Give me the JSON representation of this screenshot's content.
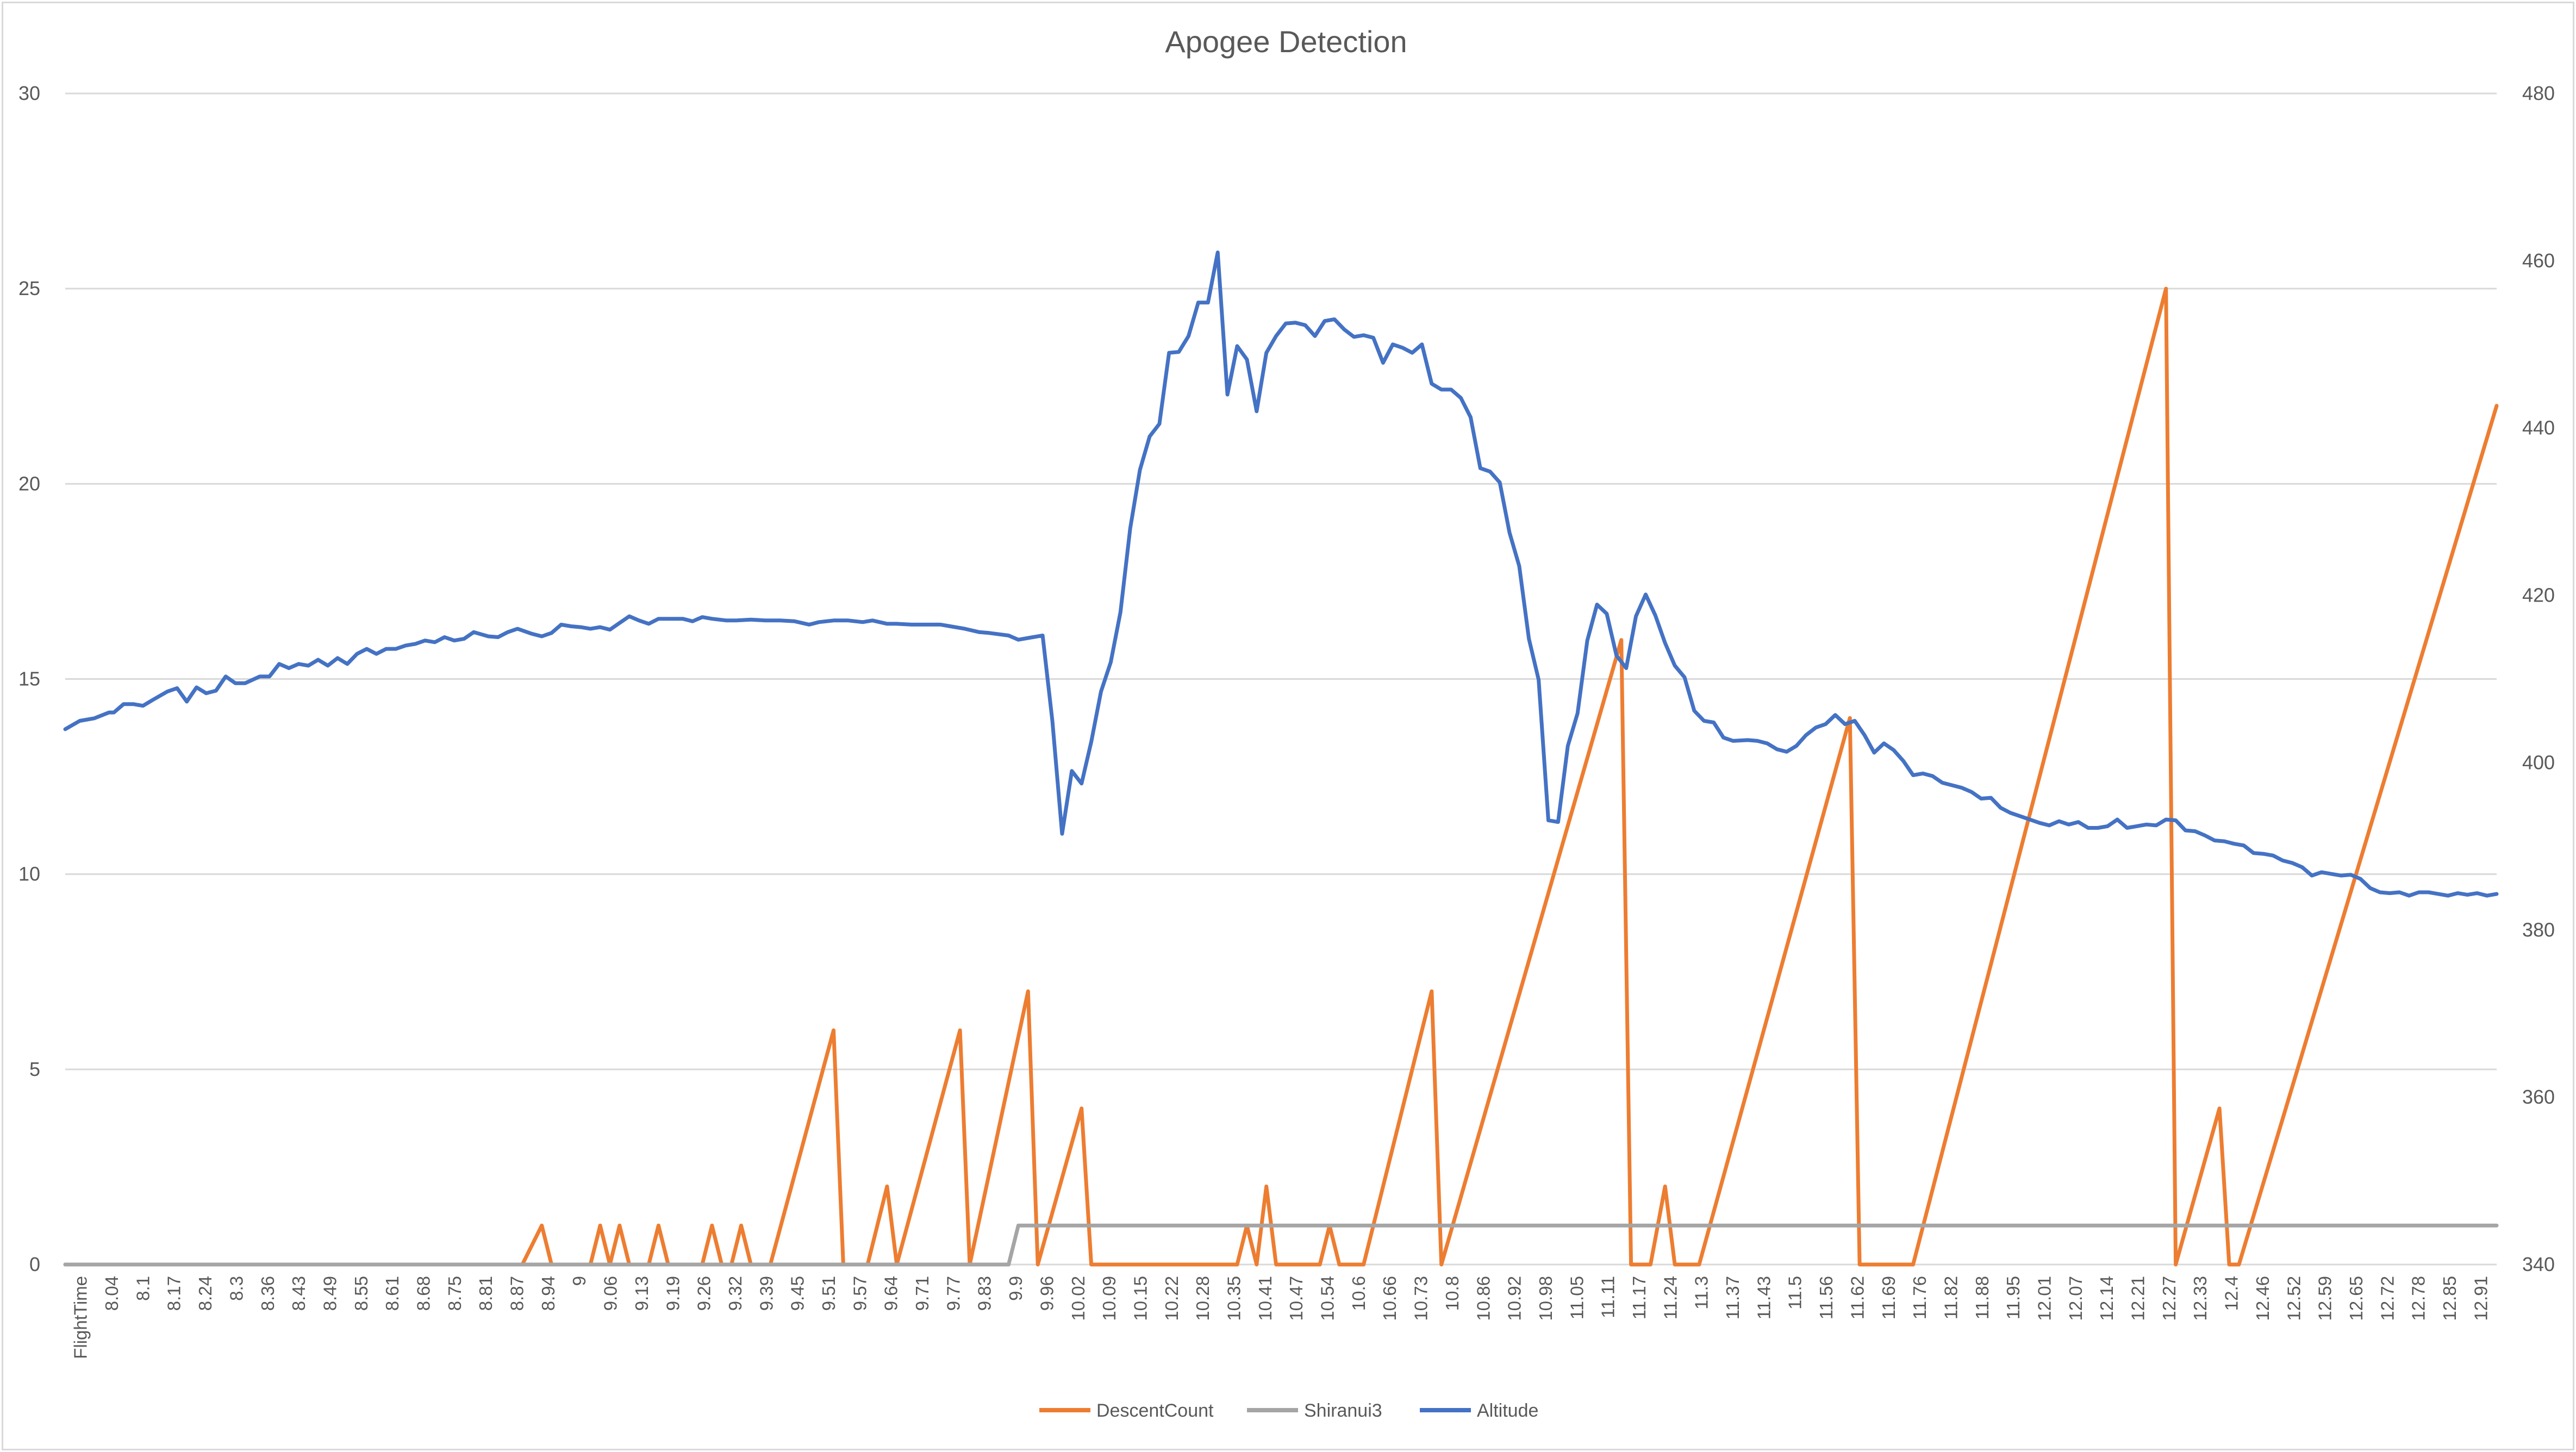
{
  "chart_data": {
    "type": "line",
    "title": "Apogee Detection",
    "xlabel": "",
    "ylabel": "",
    "y2label": "",
    "ylim": [
      0,
      30
    ],
    "y2lim": [
      340,
      480
    ],
    "yticks": [
      0,
      5,
      10,
      15,
      20,
      25,
      30
    ],
    "y2ticks": [
      340,
      360,
      380,
      400,
      420,
      440,
      460,
      480
    ],
    "grid": true,
    "legend": "bottom",
    "x_tick_labels": [
      "FlightTime",
      "8.04",
      "8.1",
      "8.17",
      "8.24",
      "8.3",
      "8.36",
      "8.43",
      "8.49",
      "8.55",
      "8.61",
      "8.68",
      "8.75",
      "8.81",
      "8.87",
      "8.94",
      "9",
      "9.06",
      "9.13",
      "9.19",
      "9.26",
      "9.32",
      "9.39",
      "9.45",
      "9.51",
      "9.57",
      "9.64",
      "9.71",
      "9.77",
      "9.83",
      "9.9",
      "9.96",
      "10.02",
      "10.09",
      "10.15",
      "10.22",
      "10.28",
      "10.35",
      "10.41",
      "10.47",
      "10.54",
      "10.6",
      "10.66",
      "10.73",
      "10.8",
      "10.86",
      "10.92",
      "10.98",
      "11.05",
      "11.11",
      "11.17",
      "11.24",
      "11.3",
      "11.37",
      "11.43",
      "11.5",
      "11.56",
      "11.62",
      "11.69",
      "11.76",
      "11.82",
      "11.88",
      "11.95",
      "12.01",
      "12.07",
      "12.14",
      "12.21",
      "12.27",
      "12.33",
      "12.4",
      "12.46",
      "12.52",
      "12.59",
      "12.65",
      "12.72",
      "12.78",
      "12.85",
      "12.91"
    ],
    "series": [
      {
        "name": "DescentCount",
        "color": "#ED7D31",
        "axis": "left",
        "points": [
          [
            8.0,
            0
          ],
          [
            8.94,
            0
          ],
          [
            8.98,
            1
          ],
          [
            9.0,
            0
          ],
          [
            9.08,
            0
          ],
          [
            9.1,
            1
          ],
          [
            9.12,
            0
          ],
          [
            9.14,
            1
          ],
          [
            9.16,
            0
          ],
          [
            9.2,
            0
          ],
          [
            9.22,
            1
          ],
          [
            9.24,
            0
          ],
          [
            9.31,
            0
          ],
          [
            9.33,
            1
          ],
          [
            9.35,
            0
          ],
          [
            9.37,
            0
          ],
          [
            9.39,
            1
          ],
          [
            9.41,
            0
          ],
          [
            9.45,
            0
          ],
          [
            9.58,
            6
          ],
          [
            9.6,
            0
          ],
          [
            9.65,
            0
          ],
          [
            9.69,
            2
          ],
          [
            9.71,
            0
          ],
          [
            9.84,
            6
          ],
          [
            9.86,
            0
          ],
          [
            9.98,
            7
          ],
          [
            10.0,
            0
          ],
          [
            10.09,
            4
          ],
          [
            10.11,
            0
          ],
          [
            10.41,
            0
          ],
          [
            10.43,
            1
          ],
          [
            10.45,
            0
          ],
          [
            10.47,
            2
          ],
          [
            10.49,
            0
          ],
          [
            10.58,
            0
          ],
          [
            10.6,
            1
          ],
          [
            10.62,
            0
          ],
          [
            10.67,
            0
          ],
          [
            10.81,
            7
          ],
          [
            10.83,
            0
          ],
          [
            11.2,
            16
          ],
          [
            11.22,
            0
          ],
          [
            11.26,
            0
          ],
          [
            11.29,
            2
          ],
          [
            11.31,
            0
          ],
          [
            11.36,
            0
          ],
          [
            11.67,
            14
          ],
          [
            11.69,
            0
          ],
          [
            11.8,
            0
          ],
          [
            12.32,
            25
          ],
          [
            12.34,
            0
          ],
          [
            12.43,
            4
          ],
          [
            12.45,
            0
          ],
          [
            12.47,
            0
          ],
          [
            13.0,
            22
          ]
        ]
      },
      {
        "name": "Shiranui3",
        "color": "#A5A5A5",
        "axis": "left",
        "points": [
          [
            8.0,
            0
          ],
          [
            9.94,
            0
          ],
          [
            9.96,
            1
          ],
          [
            13.0,
            1
          ]
        ]
      },
      {
        "name": "Altitude",
        "color": "#4472C4",
        "axis": "right",
        "points": [
          [
            8.0,
            404
          ],
          [
            8.03,
            405
          ],
          [
            8.06,
            405.3
          ],
          [
            8.09,
            406
          ],
          [
            8.1,
            406
          ],
          [
            8.12,
            407
          ],
          [
            8.14,
            407
          ],
          [
            8.16,
            406.8
          ],
          [
            8.18,
            407.5
          ],
          [
            8.21,
            408.5
          ],
          [
            8.23,
            408.9
          ],
          [
            8.25,
            407.3
          ],
          [
            8.27,
            409
          ],
          [
            8.29,
            408.3
          ],
          [
            8.31,
            408.6
          ],
          [
            8.33,
            410.3
          ],
          [
            8.35,
            409.5
          ],
          [
            8.37,
            409.5
          ],
          [
            8.4,
            410.3
          ],
          [
            8.42,
            410.3
          ],
          [
            8.44,
            411.8
          ],
          [
            8.46,
            411.3
          ],
          [
            8.48,
            411.8
          ],
          [
            8.5,
            411.6
          ],
          [
            8.52,
            412.3
          ],
          [
            8.54,
            411.6
          ],
          [
            8.56,
            412.5
          ],
          [
            8.58,
            411.8
          ],
          [
            8.6,
            413
          ],
          [
            8.62,
            413.6
          ],
          [
            8.64,
            413
          ],
          [
            8.66,
            413.6
          ],
          [
            8.68,
            413.6
          ],
          [
            8.7,
            414
          ],
          [
            8.72,
            414.2
          ],
          [
            8.74,
            414.6
          ],
          [
            8.76,
            414.4
          ],
          [
            8.78,
            415
          ],
          [
            8.8,
            414.6
          ],
          [
            8.82,
            414.8
          ],
          [
            8.84,
            415.6
          ],
          [
            8.87,
            415.1
          ],
          [
            8.89,
            415
          ],
          [
            8.91,
            415.6
          ],
          [
            8.93,
            416
          ],
          [
            8.96,
            415.4
          ],
          [
            8.98,
            415.1
          ],
          [
            9.0,
            415.5
          ],
          [
            9.02,
            416.5
          ],
          [
            9.04,
            416.3
          ],
          [
            9.06,
            416.2
          ],
          [
            9.08,
            416
          ],
          [
            9.1,
            416.2
          ],
          [
            9.12,
            415.9
          ],
          [
            9.14,
            416.7
          ],
          [
            9.16,
            417.5
          ],
          [
            9.18,
            417
          ],
          [
            9.2,
            416.6
          ],
          [
            9.22,
            417.2
          ],
          [
            9.25,
            417.2
          ],
          [
            9.27,
            417.2
          ],
          [
            9.29,
            416.9
          ],
          [
            9.31,
            417.4
          ],
          [
            9.33,
            417.2
          ],
          [
            9.36,
            417
          ],
          [
            9.38,
            417
          ],
          [
            9.41,
            417.1
          ],
          [
            9.44,
            417
          ],
          [
            9.47,
            417
          ],
          [
            9.5,
            416.9
          ],
          [
            9.53,
            416.5
          ],
          [
            9.55,
            416.8
          ],
          [
            9.58,
            417
          ],
          [
            9.61,
            417
          ],
          [
            9.64,
            416.8
          ],
          [
            9.66,
            417
          ],
          [
            9.69,
            416.6
          ],
          [
            9.71,
            416.6
          ],
          [
            9.74,
            416.5
          ],
          [
            9.77,
            416.5
          ],
          [
            9.8,
            416.5
          ],
          [
            9.82,
            416.3
          ],
          [
            9.85,
            416
          ],
          [
            9.88,
            415.6
          ],
          [
            9.9,
            415.5
          ],
          [
            9.94,
            415.2
          ],
          [
            9.96,
            414.7
          ],
          [
            9.99,
            415
          ],
          [
            10.01,
            415.2
          ],
          [
            10.03,
            405
          ],
          [
            10.05,
            391.5
          ],
          [
            10.07,
            399
          ],
          [
            10.09,
            397.5
          ],
          [
            10.11,
            402.5
          ],
          [
            10.13,
            408.5
          ],
          [
            10.15,
            412
          ],
          [
            10.17,
            418
          ],
          [
            10.19,
            428
          ],
          [
            10.21,
            435
          ],
          [
            10.23,
            439
          ],
          [
            10.25,
            440.5
          ],
          [
            10.27,
            449
          ],
          [
            10.29,
            449.1
          ],
          [
            10.31,
            451
          ],
          [
            10.33,
            455
          ],
          [
            10.35,
            455
          ],
          [
            10.37,
            461
          ],
          [
            10.39,
            444
          ],
          [
            10.41,
            449.8
          ],
          [
            10.43,
            448.2
          ],
          [
            10.45,
            442
          ],
          [
            10.47,
            449
          ],
          [
            10.49,
            451
          ],
          [
            10.51,
            452.5
          ],
          [
            10.53,
            452.6
          ],
          [
            10.55,
            452.3
          ],
          [
            10.57,
            451
          ],
          [
            10.59,
            452.8
          ],
          [
            10.61,
            453
          ],
          [
            10.63,
            451.8
          ],
          [
            10.65,
            450.9
          ],
          [
            10.67,
            451.1
          ],
          [
            10.69,
            450.8
          ],
          [
            10.71,
            447.8
          ],
          [
            10.73,
            450
          ],
          [
            10.75,
            449.6
          ],
          [
            10.77,
            449
          ],
          [
            10.79,
            450
          ],
          [
            10.81,
            445.3
          ],
          [
            10.83,
            444.6
          ],
          [
            10.85,
            444.6
          ],
          [
            10.87,
            443.6
          ],
          [
            10.89,
            441.3
          ],
          [
            10.91,
            435.2
          ],
          [
            10.93,
            434.8
          ],
          [
            10.95,
            433.5
          ],
          [
            10.97,
            427.5
          ],
          [
            10.99,
            423.5
          ],
          [
            11.01,
            414.8
          ],
          [
            11.03,
            409.9
          ],
          [
            11.05,
            393.1
          ],
          [
            11.07,
            392.9
          ],
          [
            11.09,
            402
          ],
          [
            11.11,
            405.9
          ],
          [
            11.13,
            414.6
          ],
          [
            11.15,
            418.9
          ],
          [
            11.17,
            417.8
          ],
          [
            11.19,
            412.8
          ],
          [
            11.21,
            411.3
          ],
          [
            11.23,
            417.5
          ],
          [
            11.25,
            420.1
          ],
          [
            11.27,
            417.6
          ],
          [
            11.29,
            414.3
          ],
          [
            11.31,
            411.6
          ],
          [
            11.33,
            410.2
          ],
          [
            11.35,
            406.2
          ],
          [
            11.37,
            405
          ],
          [
            11.39,
            404.8
          ],
          [
            11.41,
            403
          ],
          [
            11.43,
            402.6
          ],
          [
            11.46,
            402.7
          ],
          [
            11.48,
            402.6
          ],
          [
            11.5,
            402.3
          ],
          [
            11.52,
            401.6
          ],
          [
            11.54,
            401.3
          ],
          [
            11.56,
            402
          ],
          [
            11.58,
            403.3
          ],
          [
            11.6,
            404.2
          ],
          [
            11.62,
            404.6
          ],
          [
            11.64,
            405.7
          ],
          [
            11.66,
            404.6
          ],
          [
            11.68,
            405
          ],
          [
            11.7,
            403.3
          ],
          [
            11.72,
            401.2
          ],
          [
            11.74,
            402.3
          ],
          [
            11.76,
            401.5
          ],
          [
            11.78,
            400.2
          ],
          [
            11.8,
            398.5
          ],
          [
            11.82,
            398.7
          ],
          [
            11.84,
            398.4
          ],
          [
            11.86,
            397.6
          ],
          [
            11.88,
            397.3
          ],
          [
            11.9,
            397
          ],
          [
            11.92,
            396.5
          ],
          [
            11.94,
            395.7
          ],
          [
            11.96,
            395.8
          ],
          [
            11.98,
            394.6
          ],
          [
            12.0,
            394
          ],
          [
            12.02,
            393.6
          ],
          [
            12.04,
            393.2
          ],
          [
            12.06,
            392.8
          ],
          [
            12.08,
            392.5
          ],
          [
            12.1,
            393
          ],
          [
            12.12,
            392.6
          ],
          [
            12.14,
            392.9
          ],
          [
            12.16,
            392.2
          ],
          [
            12.18,
            392.2
          ],
          [
            12.2,
            392.4
          ],
          [
            12.22,
            393.2
          ],
          [
            12.24,
            392.2
          ],
          [
            12.26,
            392.4
          ],
          [
            12.28,
            392.6
          ],
          [
            12.3,
            392.5
          ],
          [
            12.32,
            393.2
          ],
          [
            12.34,
            393.1
          ],
          [
            12.36,
            391.9
          ],
          [
            12.38,
            391.8
          ],
          [
            12.4,
            391.3
          ],
          [
            12.42,
            390.7
          ],
          [
            12.44,
            390.6
          ],
          [
            12.46,
            390.3
          ],
          [
            12.48,
            390.1
          ],
          [
            12.5,
            389.2
          ],
          [
            12.52,
            389.1
          ],
          [
            12.54,
            388.9
          ],
          [
            12.56,
            388.3
          ],
          [
            12.58,
            388
          ],
          [
            12.6,
            387.5
          ],
          [
            12.62,
            386.5
          ],
          [
            12.64,
            386.9
          ],
          [
            12.66,
            386.7
          ],
          [
            12.68,
            386.5
          ],
          [
            12.7,
            386.6
          ],
          [
            12.72,
            386.1
          ],
          [
            12.74,
            385
          ],
          [
            12.76,
            384.5
          ],
          [
            12.78,
            384.4
          ],
          [
            12.8,
            384.5
          ],
          [
            12.82,
            384.1
          ],
          [
            12.84,
            384.5
          ],
          [
            12.86,
            384.5
          ],
          [
            12.88,
            384.3
          ],
          [
            12.9,
            384.1
          ],
          [
            12.92,
            384.4
          ],
          [
            12.94,
            384.2
          ],
          [
            12.96,
            384.4
          ],
          [
            12.98,
            384.1
          ],
          [
            13.0,
            384.3
          ]
        ]
      }
    ]
  }
}
